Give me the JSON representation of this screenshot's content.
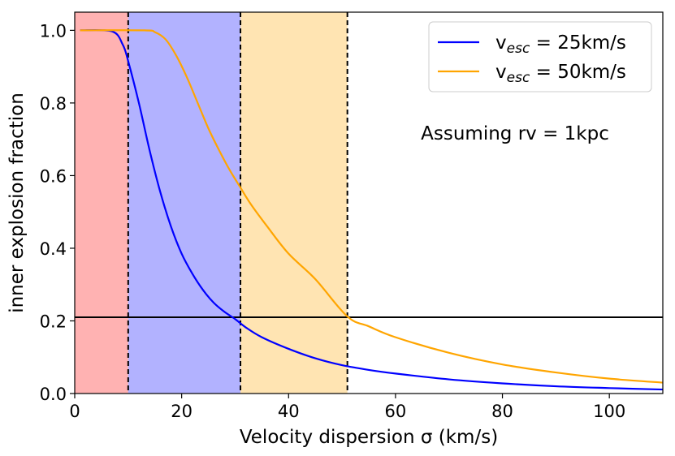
{
  "chart_data": {
    "type": "line",
    "title": "",
    "xlabel": "Velocity dispersion σ (km/s)",
    "ylabel": "inner explosion fraction",
    "xlim": [
      0,
      110
    ],
    "ylim": [
      0,
      1.05
    ],
    "x_ticks": [
      0,
      20,
      40,
      60,
      80,
      100
    ],
    "y_ticks": [
      0.0,
      0.2,
      0.4,
      0.6,
      0.8,
      1.0
    ],
    "x_tick_labels": [
      "0",
      "20",
      "40",
      "60",
      "80",
      "100"
    ],
    "y_tick_labels": [
      "0.0",
      "0.2",
      "0.4",
      "0.6",
      "0.8",
      "1.0"
    ],
    "grid": false,
    "legend_position": "top-right",
    "series": [
      {
        "name": "v_esc = 25km/s",
        "legend_prefix": "v",
        "legend_sub": "esc",
        "legend_suffix": " = 25km/s",
        "color": "#0000ff",
        "points": [
          [
            1,
            1.0
          ],
          [
            7,
            0.997
          ],
          [
            9,
            0.96
          ],
          [
            10,
            0.915
          ],
          [
            12,
            0.8
          ],
          [
            14,
            0.67
          ],
          [
            16,
            0.555
          ],
          [
            18,
            0.46
          ],
          [
            20,
            0.385
          ],
          [
            22,
            0.33
          ],
          [
            24,
            0.285
          ],
          [
            26,
            0.25
          ],
          [
            28,
            0.225
          ],
          [
            30,
            0.205
          ],
          [
            32,
            0.182
          ],
          [
            35,
            0.155
          ],
          [
            40,
            0.123
          ],
          [
            45,
            0.097
          ],
          [
            50,
            0.078
          ],
          [
            55,
            0.065
          ],
          [
            60,
            0.055
          ],
          [
            70,
            0.039
          ],
          [
            80,
            0.028
          ],
          [
            90,
            0.02
          ],
          [
            100,
            0.015
          ],
          [
            110,
            0.011
          ]
        ]
      },
      {
        "name": "v_esc = 50km/s",
        "legend_prefix": "v",
        "legend_sub": "esc",
        "legend_suffix": " = 50km/s",
        "color": "#ffa500",
        "points": [
          [
            1,
            1.0
          ],
          [
            13,
            1.0
          ],
          [
            15,
            0.995
          ],
          [
            17,
            0.975
          ],
          [
            19,
            0.93
          ],
          [
            21,
            0.87
          ],
          [
            23,
            0.8
          ],
          [
            25,
            0.73
          ],
          [
            27,
            0.67
          ],
          [
            29,
            0.615
          ],
          [
            31,
            0.567
          ],
          [
            33,
            0.52
          ],
          [
            36,
            0.46
          ],
          [
            40,
            0.385
          ],
          [
            45,
            0.315
          ],
          [
            51,
            0.212
          ],
          [
            55,
            0.185
          ],
          [
            60,
            0.155
          ],
          [
            70,
            0.112
          ],
          [
            80,
            0.08
          ],
          [
            90,
            0.058
          ],
          [
            100,
            0.041
          ],
          [
            110,
            0.03
          ]
        ]
      }
    ],
    "shaded_regions": [
      {
        "x_start": 0,
        "x_end": 10,
        "color": "#ff0000",
        "opacity": 0.3
      },
      {
        "x_start": 10,
        "x_end": 31,
        "color": "#0000ff",
        "opacity": 0.3
      },
      {
        "x_start": 31,
        "x_end": 51,
        "color": "#ffa500",
        "opacity": 0.3
      }
    ],
    "vertical_lines": [
      10,
      31,
      51
    ],
    "horizontal_line": 0.21,
    "annotation": "Assuming rv = 1kpc"
  }
}
